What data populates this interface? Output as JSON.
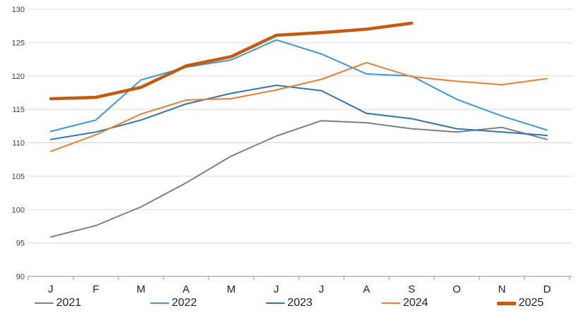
{
  "chart_data": {
    "type": "line",
    "title": "",
    "xlabel": "",
    "ylabel": "",
    "categories": [
      "J",
      "F",
      "M",
      "A",
      "M",
      "J",
      "J",
      "A",
      "S",
      "O",
      "N",
      "D"
    ],
    "ylim": [
      90,
      130
    ],
    "yticks": [
      90,
      95,
      100,
      105,
      110,
      115,
      120,
      125,
      130
    ],
    "grid": true,
    "legend_position": "bottom",
    "series": [
      {
        "name": "2021",
        "color": "#808080",
        "width": 2,
        "values": [
          95.9,
          97.6,
          100.4,
          104.0,
          108.0,
          111.0,
          113.3,
          113.0,
          112.1,
          111.6,
          112.3,
          110.5
        ]
      },
      {
        "name": "2022",
        "color": "#3E96DC",
        "width": 2,
        "values": [
          111.7,
          113.4,
          119.4,
          121.3,
          122.4,
          125.4,
          123.3,
          120.3,
          120.0,
          116.5,
          114.0,
          111.9
        ]
      },
      {
        "name": "2023",
        "color": "#2E75B6",
        "width": 2,
        "values": [
          110.5,
          111.6,
          113.4,
          115.8,
          117.4,
          118.6,
          117.8,
          114.4,
          113.6,
          112.1,
          111.6,
          111.1
        ]
      },
      {
        "name": "2024",
        "color": "#ED7D31",
        "width": 2,
        "values": [
          108.7,
          111.2,
          114.3,
          116.4,
          116.6,
          117.9,
          119.5,
          122.0,
          119.9,
          119.2,
          118.7,
          119.6
        ]
      },
      {
        "name": "2025",
        "color": "#C55A11",
        "width": 4.5,
        "values": [
          116.6,
          116.8,
          118.3,
          121.5,
          122.9,
          126.1,
          126.5,
          127.0,
          127.9,
          null,
          null,
          null
        ]
      }
    ],
    "colors": {
      "gridline": "#D9D9D9",
      "axis": "#A6A6A6",
      "tick_label": "#3F3F3F",
      "month_label": "#1F1F1F"
    }
  }
}
